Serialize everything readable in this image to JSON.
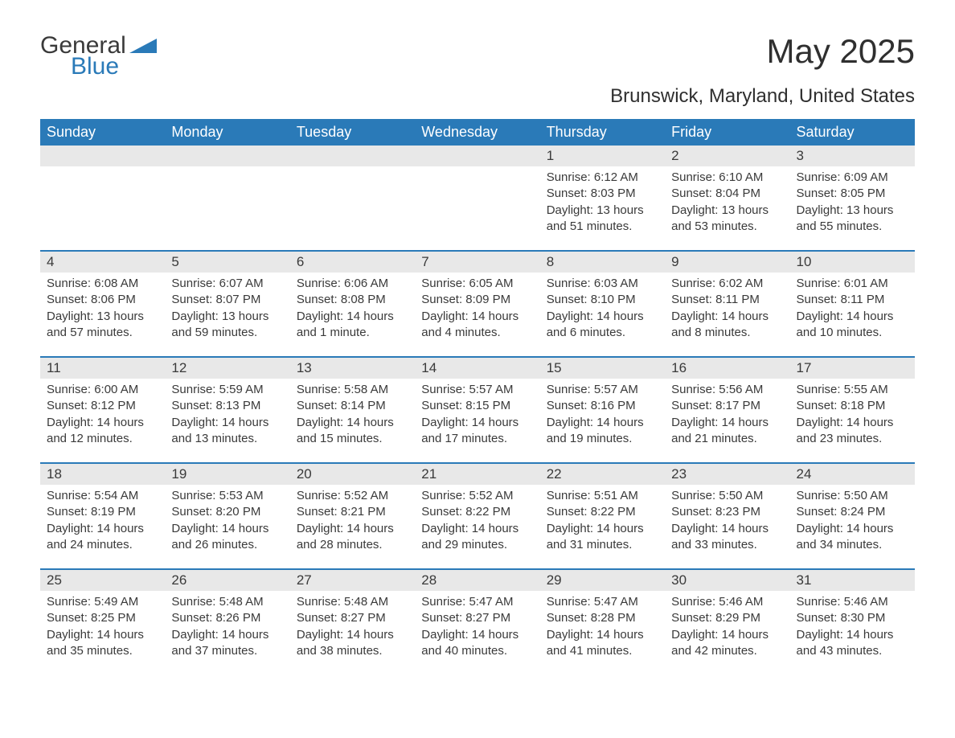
{
  "logo": {
    "text_general": "General",
    "text_blue": "Blue",
    "triangle_color": "#2a7ab8"
  },
  "title": "May 2025",
  "subtitle": "Brunswick, Maryland, United States",
  "colors": {
    "header_bg": "#2a7ab8",
    "header_text": "#ffffff",
    "daynum_bg": "#e8e8e8",
    "text": "#3a3a3a",
    "week_border": "#2a7ab8",
    "page_bg": "#ffffff"
  },
  "typography": {
    "title_fontsize": 42,
    "subtitle_fontsize": 24,
    "weekday_fontsize": 18,
    "daynum_fontsize": 17,
    "body_fontsize": 15
  },
  "weekdays": [
    "Sunday",
    "Monday",
    "Tuesday",
    "Wednesday",
    "Thursday",
    "Friday",
    "Saturday"
  ],
  "weeks": [
    [
      {
        "num": "",
        "sunrise": "",
        "sunset": "",
        "daylight": ""
      },
      {
        "num": "",
        "sunrise": "",
        "sunset": "",
        "daylight": ""
      },
      {
        "num": "",
        "sunrise": "",
        "sunset": "",
        "daylight": ""
      },
      {
        "num": "",
        "sunrise": "",
        "sunset": "",
        "daylight": ""
      },
      {
        "num": "1",
        "sunrise": "Sunrise: 6:12 AM",
        "sunset": "Sunset: 8:03 PM",
        "daylight": "Daylight: 13 hours and 51 minutes."
      },
      {
        "num": "2",
        "sunrise": "Sunrise: 6:10 AM",
        "sunset": "Sunset: 8:04 PM",
        "daylight": "Daylight: 13 hours and 53 minutes."
      },
      {
        "num": "3",
        "sunrise": "Sunrise: 6:09 AM",
        "sunset": "Sunset: 8:05 PM",
        "daylight": "Daylight: 13 hours and 55 minutes."
      }
    ],
    [
      {
        "num": "4",
        "sunrise": "Sunrise: 6:08 AM",
        "sunset": "Sunset: 8:06 PM",
        "daylight": "Daylight: 13 hours and 57 minutes."
      },
      {
        "num": "5",
        "sunrise": "Sunrise: 6:07 AM",
        "sunset": "Sunset: 8:07 PM",
        "daylight": "Daylight: 13 hours and 59 minutes."
      },
      {
        "num": "6",
        "sunrise": "Sunrise: 6:06 AM",
        "sunset": "Sunset: 8:08 PM",
        "daylight": "Daylight: 14 hours and 1 minute."
      },
      {
        "num": "7",
        "sunrise": "Sunrise: 6:05 AM",
        "sunset": "Sunset: 8:09 PM",
        "daylight": "Daylight: 14 hours and 4 minutes."
      },
      {
        "num": "8",
        "sunrise": "Sunrise: 6:03 AM",
        "sunset": "Sunset: 8:10 PM",
        "daylight": "Daylight: 14 hours and 6 minutes."
      },
      {
        "num": "9",
        "sunrise": "Sunrise: 6:02 AM",
        "sunset": "Sunset: 8:11 PM",
        "daylight": "Daylight: 14 hours and 8 minutes."
      },
      {
        "num": "10",
        "sunrise": "Sunrise: 6:01 AM",
        "sunset": "Sunset: 8:11 PM",
        "daylight": "Daylight: 14 hours and 10 minutes."
      }
    ],
    [
      {
        "num": "11",
        "sunrise": "Sunrise: 6:00 AM",
        "sunset": "Sunset: 8:12 PM",
        "daylight": "Daylight: 14 hours and 12 minutes."
      },
      {
        "num": "12",
        "sunrise": "Sunrise: 5:59 AM",
        "sunset": "Sunset: 8:13 PM",
        "daylight": "Daylight: 14 hours and 13 minutes."
      },
      {
        "num": "13",
        "sunrise": "Sunrise: 5:58 AM",
        "sunset": "Sunset: 8:14 PM",
        "daylight": "Daylight: 14 hours and 15 minutes."
      },
      {
        "num": "14",
        "sunrise": "Sunrise: 5:57 AM",
        "sunset": "Sunset: 8:15 PM",
        "daylight": "Daylight: 14 hours and 17 minutes."
      },
      {
        "num": "15",
        "sunrise": "Sunrise: 5:57 AM",
        "sunset": "Sunset: 8:16 PM",
        "daylight": "Daylight: 14 hours and 19 minutes."
      },
      {
        "num": "16",
        "sunrise": "Sunrise: 5:56 AM",
        "sunset": "Sunset: 8:17 PM",
        "daylight": "Daylight: 14 hours and 21 minutes."
      },
      {
        "num": "17",
        "sunrise": "Sunrise: 5:55 AM",
        "sunset": "Sunset: 8:18 PM",
        "daylight": "Daylight: 14 hours and 23 minutes."
      }
    ],
    [
      {
        "num": "18",
        "sunrise": "Sunrise: 5:54 AM",
        "sunset": "Sunset: 8:19 PM",
        "daylight": "Daylight: 14 hours and 24 minutes."
      },
      {
        "num": "19",
        "sunrise": "Sunrise: 5:53 AM",
        "sunset": "Sunset: 8:20 PM",
        "daylight": "Daylight: 14 hours and 26 minutes."
      },
      {
        "num": "20",
        "sunrise": "Sunrise: 5:52 AM",
        "sunset": "Sunset: 8:21 PM",
        "daylight": "Daylight: 14 hours and 28 minutes."
      },
      {
        "num": "21",
        "sunrise": "Sunrise: 5:52 AM",
        "sunset": "Sunset: 8:22 PM",
        "daylight": "Daylight: 14 hours and 29 minutes."
      },
      {
        "num": "22",
        "sunrise": "Sunrise: 5:51 AM",
        "sunset": "Sunset: 8:22 PM",
        "daylight": "Daylight: 14 hours and 31 minutes."
      },
      {
        "num": "23",
        "sunrise": "Sunrise: 5:50 AM",
        "sunset": "Sunset: 8:23 PM",
        "daylight": "Daylight: 14 hours and 33 minutes."
      },
      {
        "num": "24",
        "sunrise": "Sunrise: 5:50 AM",
        "sunset": "Sunset: 8:24 PM",
        "daylight": "Daylight: 14 hours and 34 minutes."
      }
    ],
    [
      {
        "num": "25",
        "sunrise": "Sunrise: 5:49 AM",
        "sunset": "Sunset: 8:25 PM",
        "daylight": "Daylight: 14 hours and 35 minutes."
      },
      {
        "num": "26",
        "sunrise": "Sunrise: 5:48 AM",
        "sunset": "Sunset: 8:26 PM",
        "daylight": "Daylight: 14 hours and 37 minutes."
      },
      {
        "num": "27",
        "sunrise": "Sunrise: 5:48 AM",
        "sunset": "Sunset: 8:27 PM",
        "daylight": "Daylight: 14 hours and 38 minutes."
      },
      {
        "num": "28",
        "sunrise": "Sunrise: 5:47 AM",
        "sunset": "Sunset: 8:27 PM",
        "daylight": "Daylight: 14 hours and 40 minutes."
      },
      {
        "num": "29",
        "sunrise": "Sunrise: 5:47 AM",
        "sunset": "Sunset: 8:28 PM",
        "daylight": "Daylight: 14 hours and 41 minutes."
      },
      {
        "num": "30",
        "sunrise": "Sunrise: 5:46 AM",
        "sunset": "Sunset: 8:29 PM",
        "daylight": "Daylight: 14 hours and 42 minutes."
      },
      {
        "num": "31",
        "sunrise": "Sunrise: 5:46 AM",
        "sunset": "Sunset: 8:30 PM",
        "daylight": "Daylight: 14 hours and 43 minutes."
      }
    ]
  ]
}
